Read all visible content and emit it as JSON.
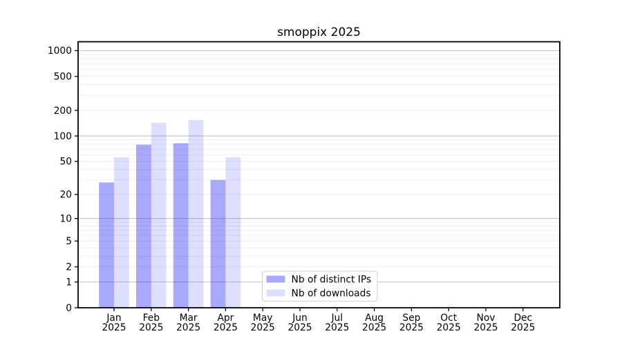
{
  "chart_data": {
    "type": "bar",
    "title": "smoppix 2025",
    "months": [
      "Jan",
      "Feb",
      "Mar",
      "Apr",
      "May",
      "Jun",
      "Jul",
      "Aug",
      "Sep",
      "Oct",
      "Nov",
      "Dec"
    ],
    "x_tick_line2": "2025",
    "categories": [
      "Jan 2025",
      "Feb 2025",
      "Mar 2025",
      "Apr 2025",
      "May 2025",
      "Jun 2025",
      "Jul 2025",
      "Aug 2025",
      "Sep 2025",
      "Oct 2025",
      "Nov 2025",
      "Dec 2025"
    ],
    "series": [
      {
        "name": "Nb of distinct IPs",
        "color": "#a9a9f7",
        "fill_rgba": "rgba(10,10,245,0.35)",
        "values": [
          28,
          79,
          82,
          30,
          0,
          0,
          0,
          0,
          0,
          0,
          0,
          0
        ]
      },
      {
        "name": "Nb of downloads",
        "color": "#dcdcfa",
        "fill_rgba": "rgba(10,10,245,0.135)",
        "values": [
          56,
          143,
          154,
          56,
          0,
          0,
          0,
          0,
          0,
          0,
          0,
          0
        ]
      }
    ],
    "y_scale": "symlog",
    "y_ticks": [
      0,
      1,
      2,
      5,
      10,
      20,
      50,
      100,
      200,
      500,
      1000
    ],
    "y_major_grid": [
      1,
      10,
      100,
      1000
    ],
    "y_minor_grid": [
      2,
      3,
      4,
      5,
      6,
      7,
      8,
      9,
      20,
      30,
      40,
      50,
      60,
      70,
      80,
      90,
      200,
      300,
      400,
      500,
      600,
      700,
      800,
      900
    ],
    "ylim": [
      0,
      1270
    ],
    "grid": true,
    "legend_position": "lower center"
  },
  "colors": {
    "background": "#ffffff",
    "axis": "#000000",
    "grid_minor": "#ededed",
    "grid_major": "#c2c2c2",
    "legend_border": "#cccccc",
    "legend_background": "rgba(255,255,255,0.9)",
    "text": "#000000"
  }
}
